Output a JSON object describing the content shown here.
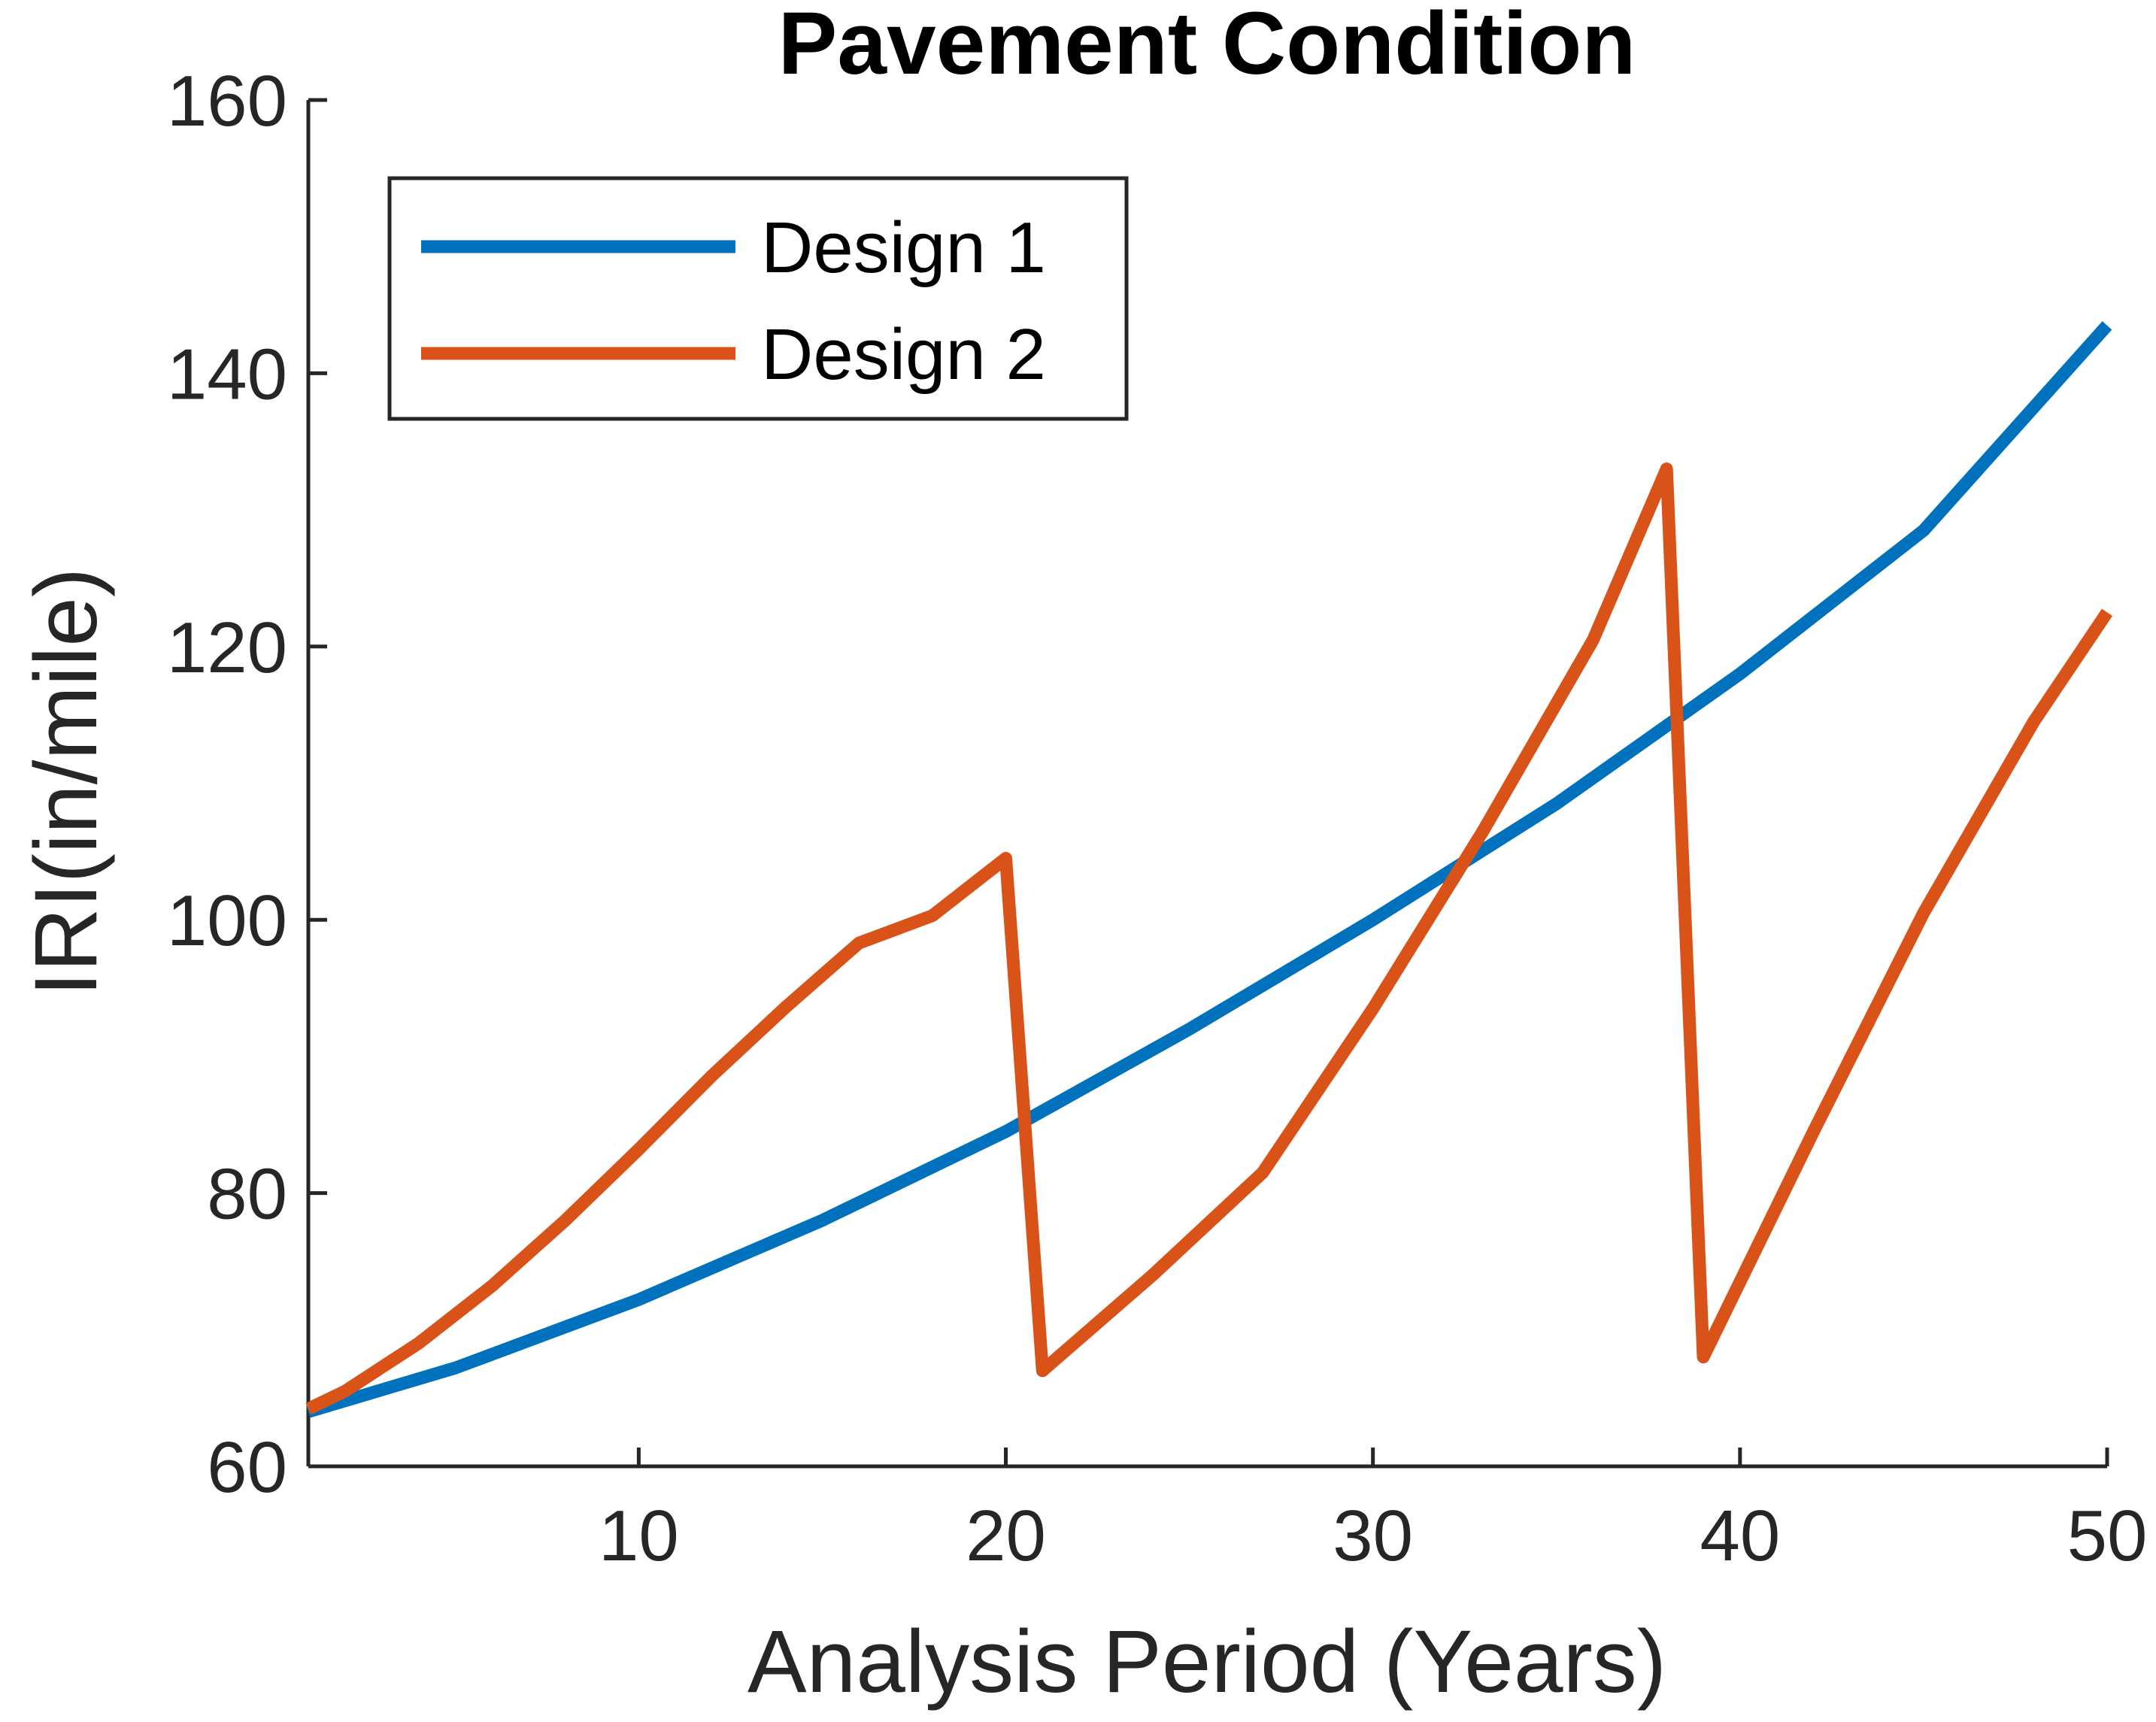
{
  "chart_data": {
    "type": "line",
    "title": "Pavement Condition",
    "xlabel": "Analysis Period (Years)",
    "ylabel": "IRI(in/mile)",
    "xlim": [
      1,
      50
    ],
    "ylim": [
      60,
      160
    ],
    "xticks": [
      10,
      20,
      30,
      40,
      50
    ],
    "yticks": [
      60,
      80,
      100,
      120,
      140,
      160
    ],
    "grid": false,
    "legend_location": "top-left",
    "series": [
      {
        "name": "Design 1",
        "color": "#0072BD",
        "x": [
          1,
          5,
          10,
          15,
          20,
          25,
          30,
          35,
          40,
          45,
          50
        ],
        "y": [
          64,
          67.2,
          72.2,
          78,
          84.5,
          92,
          100,
          108.5,
          118,
          128.5,
          143.5
        ]
      },
      {
        "name": "Design 2",
        "color": "#D95319",
        "x": [
          1,
          2,
          4,
          6,
          8,
          10,
          12,
          14,
          16,
          18,
          20,
          21,
          24,
          27,
          30,
          33,
          36,
          38,
          39,
          42,
          45,
          48,
          50
        ],
        "y": [
          64.2,
          65.5,
          69,
          73.2,
          78,
          83.2,
          88.6,
          93.6,
          98.3,
          100.3,
          104.5,
          67,
          74,
          81.5,
          93.5,
          106.5,
          120.5,
          133,
          68,
          84.5,
          100.5,
          114.5,
          122.5
        ]
      }
    ]
  }
}
